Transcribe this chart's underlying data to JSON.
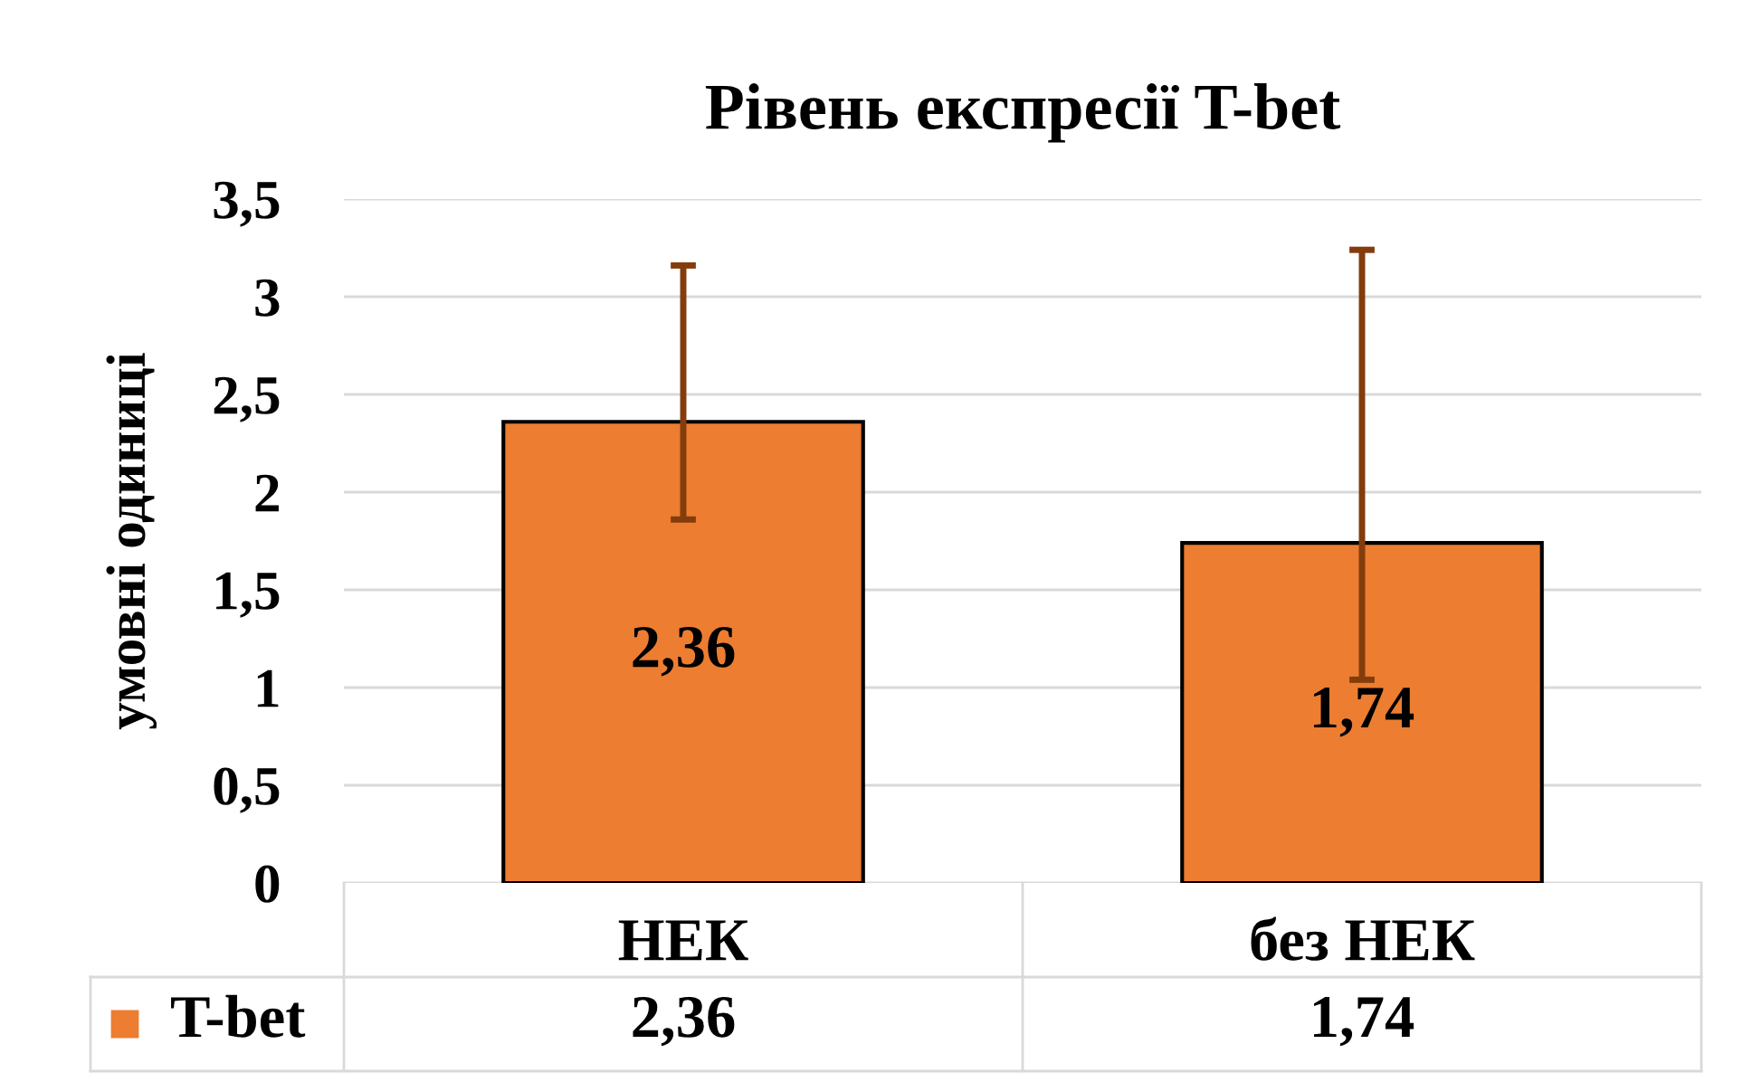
{
  "chart_data": {
    "type": "bar",
    "title": "Рівень експресії T-bet",
    "ylabel": "умовні одиниці",
    "categories": [
      "НЕК",
      "без НЕК"
    ],
    "series": [
      {
        "name": "T-bet",
        "color": "#ed7d31",
        "values": [
          2.36,
          1.74
        ],
        "value_labels": [
          "2,36",
          "1,74"
        ],
        "errors": [
          [
            1.86,
            3.16
          ],
          [
            1.04,
            3.24
          ]
        ]
      }
    ],
    "ylim": [
      0,
      3.5
    ],
    "yticks": [
      0,
      {
        "value": 0.5,
        "label": "0,5"
      },
      1,
      {
        "value": 1.5,
        "label": "1,5"
      },
      2,
      {
        "value": 2.5,
        "label": "2,5"
      },
      3,
      {
        "value": 3.5,
        "label": "3,5"
      }
    ],
    "grid": "y",
    "legend": "bottom left"
  }
}
